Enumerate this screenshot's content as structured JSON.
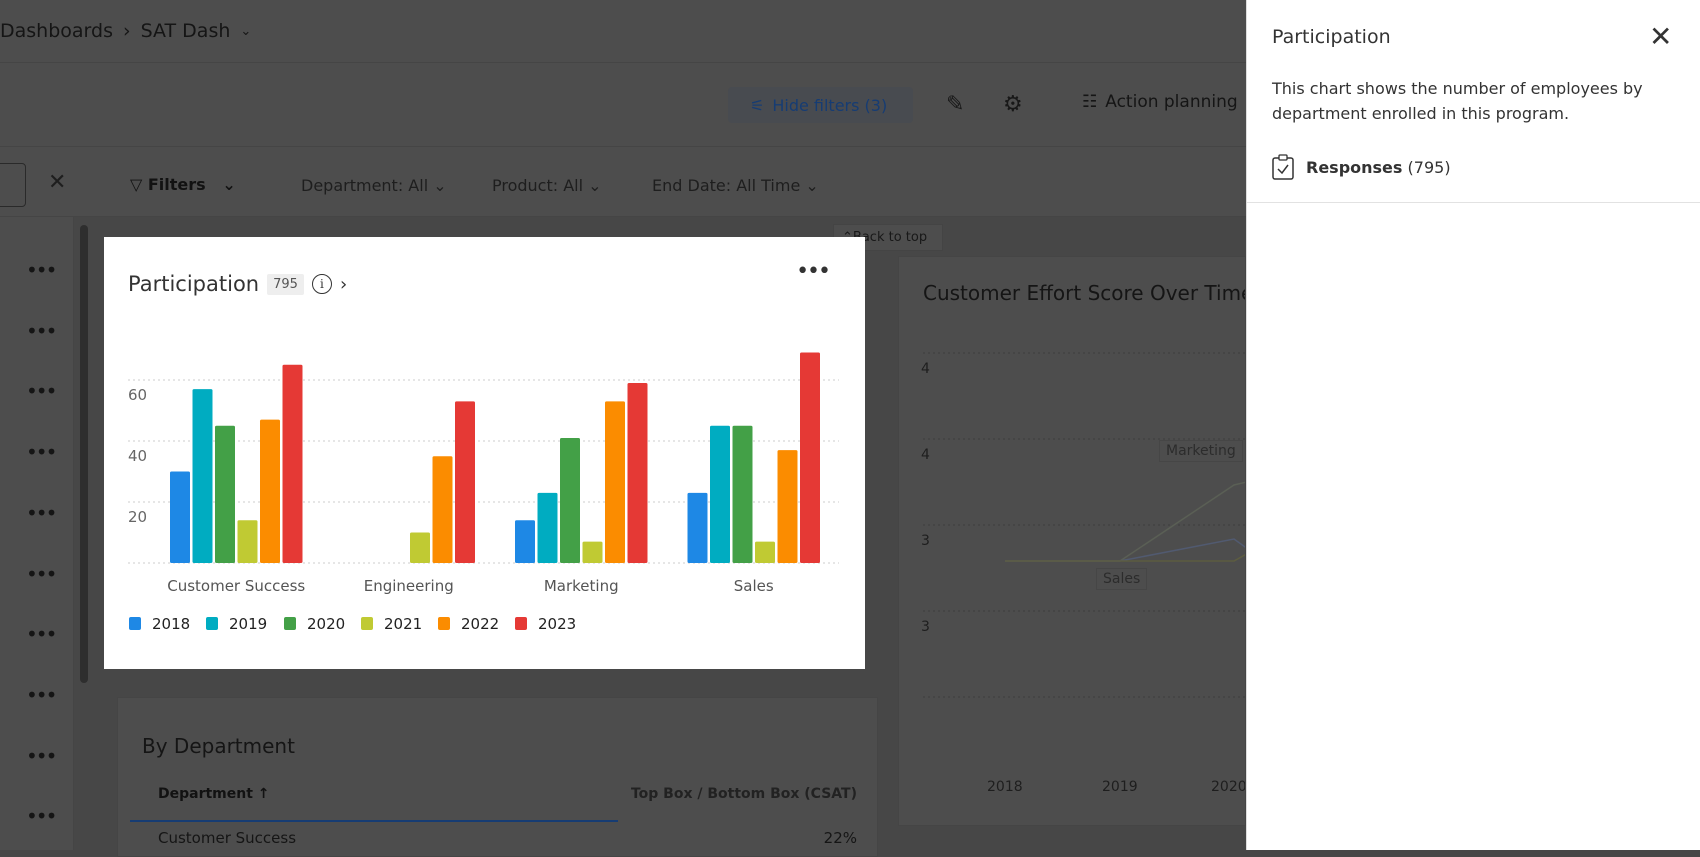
{
  "header": {
    "breadcrumb_parent": "Dashboards",
    "breadcrumb_current": "SAT Dash"
  },
  "toolbar": {
    "hide_filters": "Hide filters (3)",
    "action_planning": "Action planning"
  },
  "filters": {
    "label": "Filters",
    "items": [
      "Department: All",
      "Product: All",
      "End Date: All Time"
    ]
  },
  "back_to_top": "Back to top",
  "participation_card": {
    "title": "Participation",
    "count": "795"
  },
  "effort_card": {
    "title": "Customer Effort Score Over Time",
    "y_ticks": [
      "4",
      "4",
      "3",
      "3"
    ],
    "x_ticks": [
      "2018",
      "2019",
      "2020"
    ],
    "labels": [
      "Marketing",
      "Sales"
    ]
  },
  "department_card": {
    "title": "By Department",
    "col1": "Department",
    "col2": "Top Box / Bottom Box (CSAT)",
    "row1": "Customer Success",
    "row1_value": "22%"
  },
  "panel": {
    "title": "Participation",
    "description": "This chart shows the number of employees by department enrolled in this program.",
    "responses_label": "Responses",
    "responses_count": "(795)"
  },
  "chart_data": {
    "type": "bar",
    "categories": [
      "Customer Success",
      "Engineering",
      "Marketing",
      "Sales"
    ],
    "series": [
      {
        "name": "2018",
        "color": "#1e88e5",
        "values": [
          30,
          0,
          14,
          23
        ]
      },
      {
        "name": "2019",
        "color": "#00acc1",
        "values": [
          57,
          0,
          23,
          45
        ]
      },
      {
        "name": "2020",
        "color": "#43a047",
        "values": [
          45,
          0,
          41,
          45
        ]
      },
      {
        "name": "2021",
        "color": "#c0ca33",
        "values": [
          14,
          10,
          7,
          7
        ]
      },
      {
        "name": "2022",
        "color": "#fb8c00",
        "values": [
          47,
          35,
          53,
          37
        ]
      },
      {
        "name": "2023",
        "color": "#e53935",
        "values": [
          65,
          53,
          59,
          69
        ]
      }
    ],
    "y_ticks": [
      "20",
      "40",
      "60"
    ],
    "ylim": [
      0,
      70
    ],
    "grid": true,
    "legend": "bottom-left"
  }
}
